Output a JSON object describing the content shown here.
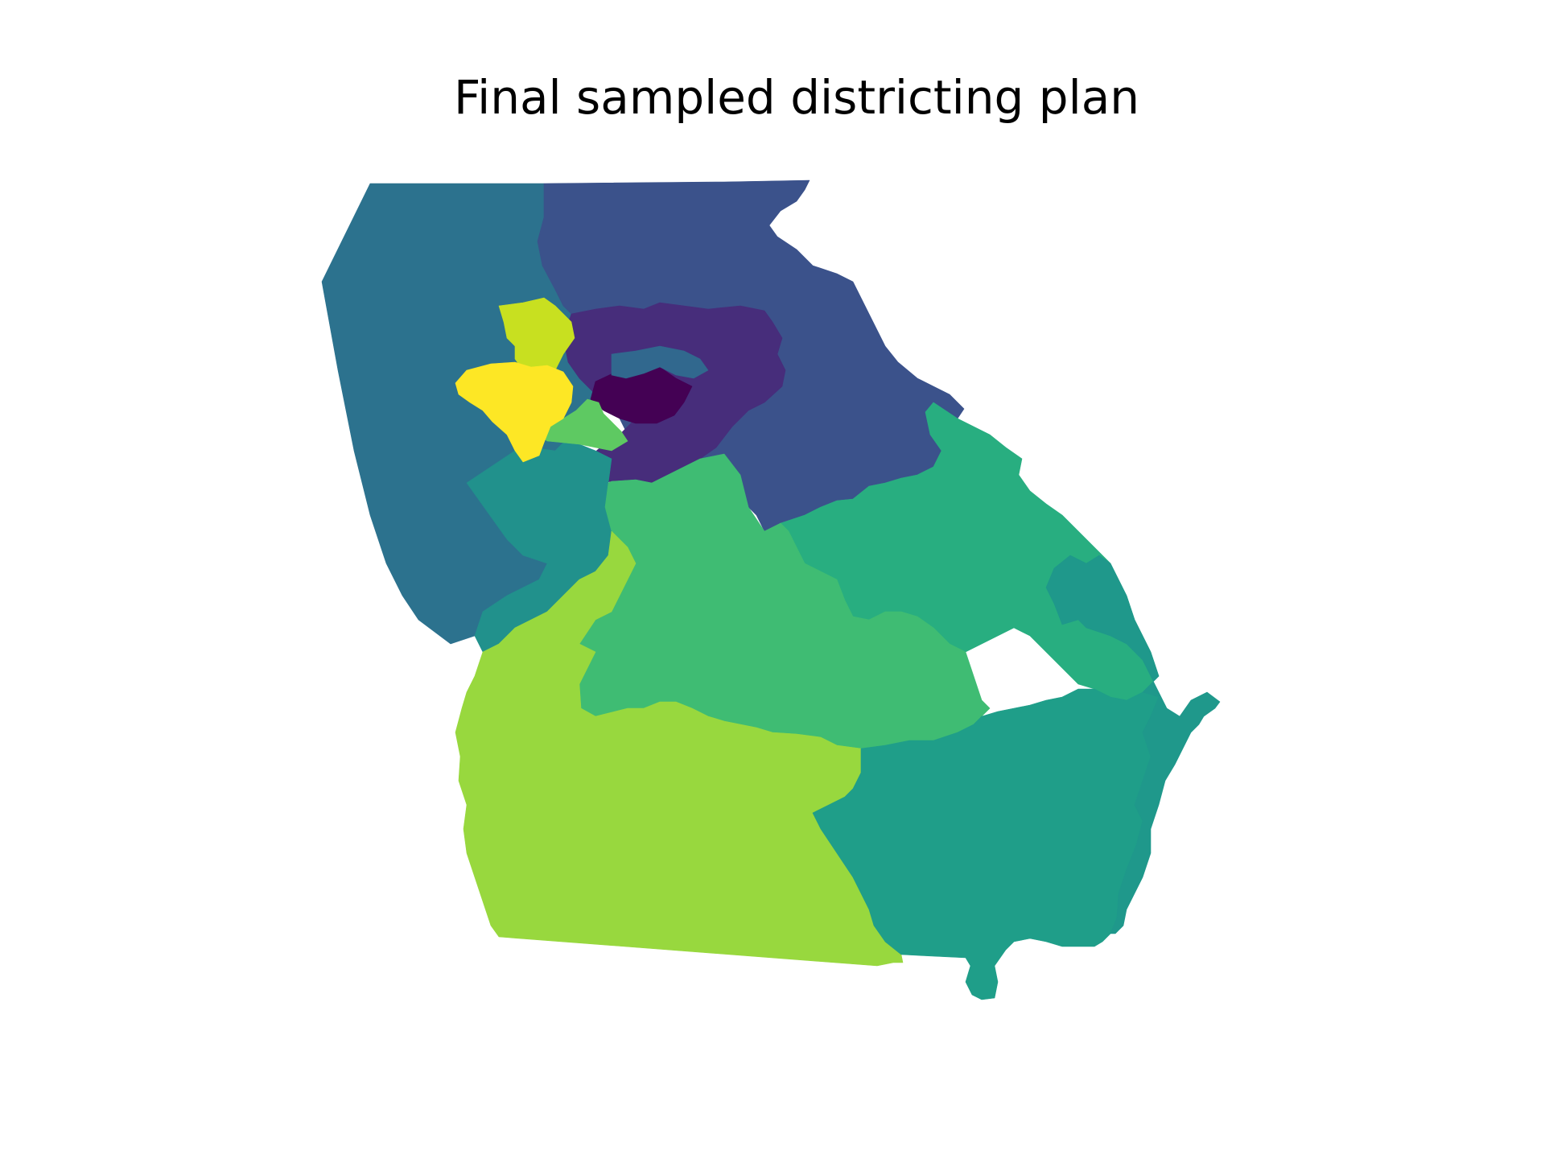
{
  "title": "Final sampled districting plan",
  "map": {
    "region": "Georgia",
    "districts": [
      {
        "id": "northwest",
        "color": "#2c728e"
      },
      {
        "id": "north-east",
        "color": "#3b528b"
      },
      {
        "id": "metro-north-band",
        "color": "#472d7b"
      },
      {
        "id": "metro-center",
        "color": "#440154"
      },
      {
        "id": "metro-sliver",
        "color": "#31688e"
      },
      {
        "id": "west-central",
        "color": "#21918c"
      },
      {
        "id": "metro-green",
        "color": "#5ec962"
      },
      {
        "id": "northwest-metro-yellow-green",
        "color": "#c8e020"
      },
      {
        "id": "northwest-metro-yellow",
        "color": "#fde725"
      },
      {
        "id": "east",
        "color": "#28ae80"
      },
      {
        "id": "central",
        "color": "#3fbc73"
      },
      {
        "id": "southwest",
        "color": "#98d83e"
      },
      {
        "id": "southeast",
        "color": "#1f9e89"
      },
      {
        "id": "coastal",
        "color": "#1f988b"
      }
    ]
  }
}
